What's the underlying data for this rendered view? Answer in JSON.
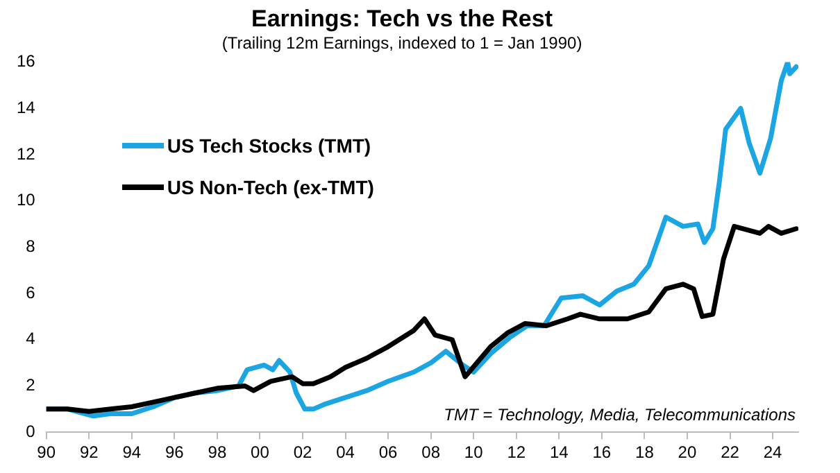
{
  "chart_data": {
    "type": "line",
    "title": "Earnings: Tech vs the Rest",
    "subtitle": "(Trailing 12m Earnings, indexed to 1 = Jan 1990)",
    "series": [
      {
        "name": "US Tech Stocks (TMT)",
        "color": "#1ca5e3",
        "x": [
          1990,
          1991,
          1992.2,
          1993,
          1994,
          1995,
          1996,
          1997,
          1998,
          1999,
          1999.4,
          2000.2,
          2000.6,
          2000.9,
          2001.4,
          2001.7,
          2002.1,
          2002.5,
          2003,
          2004,
          2005,
          2006,
          2007.2,
          2008,
          2008.7,
          2009.5,
          2010,
          2010.8,
          2011.7,
          2012.5,
          2013.3,
          2014.1,
          2015.1,
          2015.9,
          2016.7,
          2017.5,
          2018.2,
          2019.0,
          2019.8,
          2020.5,
          2020.8,
          2021.2,
          2021.5,
          2021.8,
          2022.5,
          2022.9,
          2023.4,
          2023.9,
          2024.4,
          2024.7,
          2024.8,
          2025.1
        ],
        "values": [
          1.0,
          1.0,
          0.7,
          0.8,
          0.8,
          1.1,
          1.5,
          1.7,
          1.8,
          2.0,
          2.7,
          2.9,
          2.7,
          3.1,
          2.6,
          1.7,
          1.0,
          1.0,
          1.2,
          1.5,
          1.8,
          2.2,
          2.6,
          3.0,
          3.5,
          2.9,
          2.6,
          3.4,
          4.1,
          4.6,
          4.6,
          5.8,
          5.9,
          5.5,
          6.1,
          6.4,
          7.2,
          9.3,
          8.9,
          9.0,
          8.2,
          8.8,
          10.8,
          13.1,
          14.0,
          12.5,
          11.2,
          12.7,
          15.2,
          16.0,
          15.5,
          15.8
        ]
      },
      {
        "name": "US Non-Tech (ex-TMT)",
        "color": "#000000",
        "x": [
          1990,
          1991,
          1992,
          1993,
          1994,
          1995,
          1996,
          1997,
          1998,
          1999.3,
          1999.7,
          2000.5,
          2001.5,
          2002,
          2002.5,
          2003.3,
          2004,
          2005,
          2006,
          2007.2,
          2007.7,
          2008.2,
          2009.0,
          2009.6,
          2010.8,
          2011.6,
          2012.4,
          2013.4,
          2014.4,
          2015.0,
          2015.9,
          2017.2,
          2018.2,
          2019.0,
          2019.8,
          2020.3,
          2020.7,
          2021.2,
          2021.7,
          2022.2,
          2023.4,
          2023.8,
          2024.4,
          2025.1
        ],
        "values": [
          1.0,
          1.0,
          0.9,
          1.0,
          1.1,
          1.3,
          1.5,
          1.7,
          1.9,
          2.0,
          1.8,
          2.2,
          2.4,
          2.1,
          2.1,
          2.4,
          2.8,
          3.2,
          3.7,
          4.4,
          4.9,
          4.2,
          4.0,
          2.4,
          3.7,
          4.3,
          4.7,
          4.6,
          4.9,
          5.1,
          4.9,
          4.9,
          5.2,
          6.2,
          6.4,
          6.2,
          5.0,
          5.1,
          7.5,
          8.9,
          8.6,
          8.9,
          8.6,
          8.8
        ]
      }
    ],
    "xlim": [
      1990,
      2025.2
    ],
    "xticks": [
      {
        "value": 1990,
        "label": "90"
      },
      {
        "value": 1992,
        "label": "92"
      },
      {
        "value": 1994,
        "label": "94"
      },
      {
        "value": 1996,
        "label": "96"
      },
      {
        "value": 1998,
        "label": "98"
      },
      {
        "value": 2000,
        "label": "00"
      },
      {
        "value": 2002,
        "label": "02"
      },
      {
        "value": 2004,
        "label": "04"
      },
      {
        "value": 2006,
        "label": "06"
      },
      {
        "value": 2008,
        "label": "08"
      },
      {
        "value": 2010,
        "label": "10"
      },
      {
        "value": 2012,
        "label": "12"
      },
      {
        "value": 2014,
        "label": "14"
      },
      {
        "value": 2016,
        "label": "16"
      },
      {
        "value": 2018,
        "label": "18"
      },
      {
        "value": 2020,
        "label": "20"
      },
      {
        "value": 2022,
        "label": "22"
      },
      {
        "value": 2024,
        "label": "24"
      }
    ],
    "ylim": [
      0,
      16
    ],
    "yticks": [
      0,
      2,
      4,
      6,
      8,
      10,
      12,
      14,
      16
    ],
    "annotations": [
      "TMT = Technology, Media, Telecommunications"
    ],
    "legend": "top left",
    "grid": false,
    "marker": "none",
    "line_style": "solid"
  }
}
